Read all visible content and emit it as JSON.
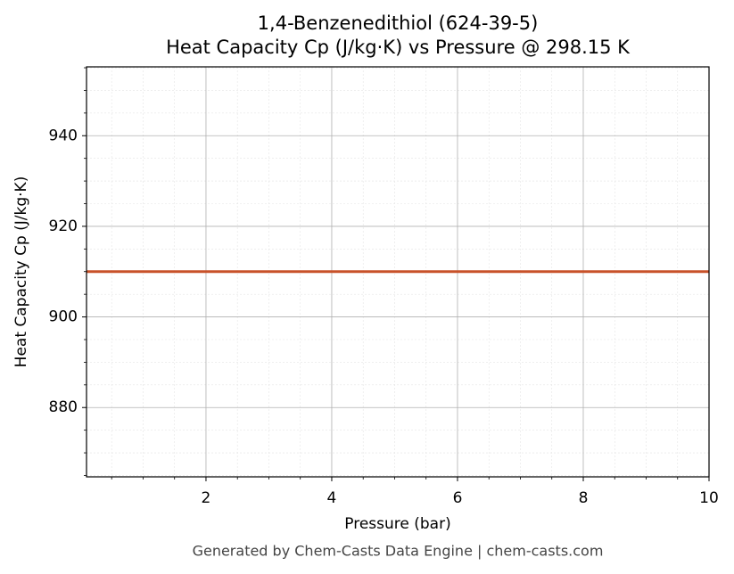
{
  "chart_data": {
    "type": "line",
    "title": "1,4-Benzenedithiol (624-39-5)",
    "subtitle": "Heat Capacity Cp (J/kg·K) vs Pressure @ 298.15 K",
    "xlabel": "Pressure (bar)",
    "ylabel": "Heat Capacity Cp (J/kg·K)",
    "footer": "Generated by Chem-Casts Data Engine | chem-casts.com",
    "x": [
      0.1,
      10
    ],
    "series": [
      {
        "name": "Cp",
        "color": "#c8522a",
        "values": [
          910,
          910
        ]
      }
    ],
    "xlim": [
      0.1,
      10
    ],
    "ylim": [
      864.7,
      955.2
    ],
    "xticks": [
      2,
      4,
      6,
      8,
      10
    ],
    "yticks": [
      880,
      900,
      920,
      940
    ],
    "x_minor_ticks": [
      0.5,
      1,
      1.5,
      2.5,
      3,
      3.5,
      4.5,
      5,
      5.5,
      6.5,
      7,
      7.5,
      8.5,
      9,
      9.5
    ],
    "y_minor_ticks": [
      865,
      870,
      875,
      885,
      890,
      895,
      905,
      910,
      915,
      925,
      930,
      935,
      945,
      950,
      955
    ],
    "grid": true,
    "legend": false
  }
}
